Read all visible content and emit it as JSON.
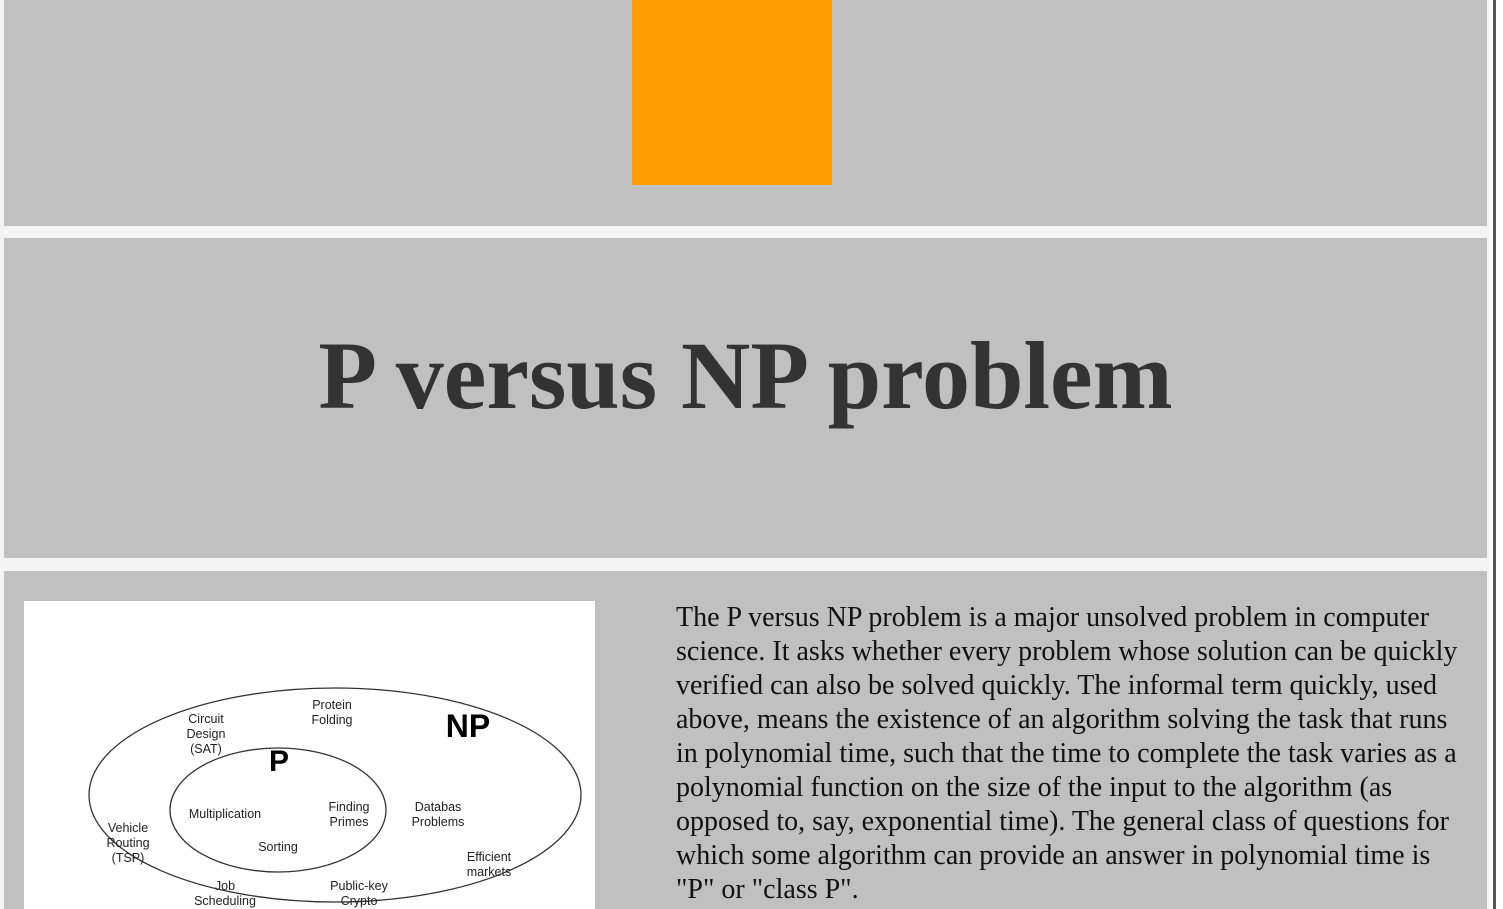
{
  "header": {
    "title": "P versus NP problem"
  },
  "figure": {
    "labels": [
      {
        "lines": [
          "Protein",
          "Folding"
        ]
      },
      {
        "lines": [
          "Circuit",
          "Design",
          "(SAT)"
        ]
      },
      {
        "lines": [
          "NP"
        ]
      },
      {
        "lines": [
          "P"
        ]
      },
      {
        "lines": [
          "Multiplication"
        ]
      },
      {
        "lines": [
          "Finding",
          "Primes"
        ]
      },
      {
        "lines": [
          "Databas",
          "Problems"
        ]
      },
      {
        "lines": [
          "Vehicle",
          "Routing",
          "(TSP)"
        ]
      },
      {
        "lines": [
          "Sorting"
        ]
      },
      {
        "lines": [
          "Efficient",
          "markets"
        ]
      },
      {
        "lines": [
          "Job",
          "Scheduling"
        ]
      },
      {
        "lines": [
          "Public-key",
          "Crypto"
        ]
      }
    ]
  },
  "body": {
    "paragraph": "The P versus NP problem is a major unsolved problem in computer science. It asks whether every problem whose solution can be quickly verified can also be solved quickly. The informal term quickly, used above, means the existence of an algorithm solving the task that runs in polynomial time, such that the time to complete the task varies as a polynomial function on the size of the input to the algorithm (as opposed to, say, exponential time). The general class of questions for which some algorithm can provide an answer in polynomial time is \"P\" or \"class P\"."
  }
}
